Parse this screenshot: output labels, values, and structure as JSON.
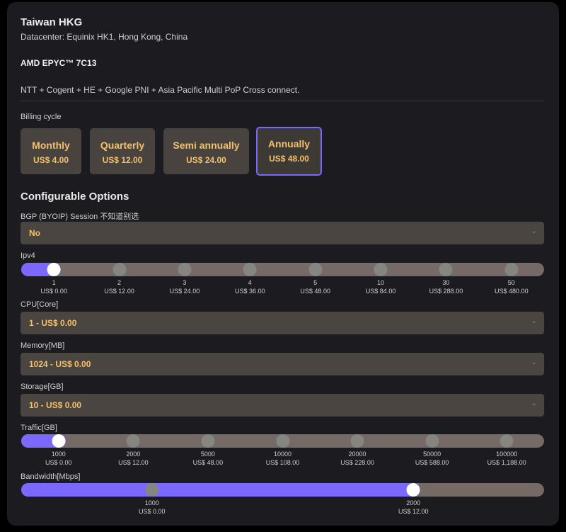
{
  "product": {
    "title": "Taiwan HKG",
    "datacenter": "Datacenter: Equinix HK1, Hong Kong, China",
    "cpu": "AMD EPYC™ 7C13",
    "network": "NTT + Cogent + HE + Google PNI + Asia Pacific Multi PoP Cross connect."
  },
  "billing": {
    "label": "Billing cycle",
    "selected": "Annually",
    "options": [
      {
        "name": "Monthly",
        "price": "US$ 4.00"
      },
      {
        "name": "Quarterly",
        "price": "US$ 12.00"
      },
      {
        "name": "Semi annually",
        "price": "US$ 24.00"
      },
      {
        "name": "Annually",
        "price": "US$ 48.00"
      }
    ]
  },
  "config": {
    "heading": "Configurable Options",
    "bgp": {
      "label": "BGP (BYOIP) Session 不知道别选",
      "value": "No"
    },
    "ipv4": {
      "label": "Ipv4",
      "selected_index": 0,
      "stops": [
        {
          "v": "1",
          "p": "US$ 0.00"
        },
        {
          "v": "2",
          "p": "US$ 12.00"
        },
        {
          "v": "3",
          "p": "US$ 24.00"
        },
        {
          "v": "4",
          "p": "US$ 36.00"
        },
        {
          "v": "5",
          "p": "US$ 48.00"
        },
        {
          "v": "10",
          "p": "US$ 84.00"
        },
        {
          "v": "30",
          "p": "US$ 288.00"
        },
        {
          "v": "50",
          "p": "US$ 480.00"
        }
      ]
    },
    "cpu": {
      "label": "CPU[Core]",
      "value": "1 - US$ 0.00"
    },
    "memory": {
      "label": "Memory[MB]",
      "value": "1024 - US$ 0.00"
    },
    "storage": {
      "label": "Storage[GB]",
      "value": "10 - US$ 0.00"
    },
    "traffic": {
      "label": "Traffic[GB]",
      "selected_index": 0,
      "stops": [
        {
          "v": "1000",
          "p": "US$ 0.00"
        },
        {
          "v": "2000",
          "p": "US$ 12.00"
        },
        {
          "v": "5000",
          "p": "US$ 48.00"
        },
        {
          "v": "10000",
          "p": "US$ 108.00"
        },
        {
          "v": "20000",
          "p": "US$ 228.00"
        },
        {
          "v": "50000",
          "p": "US$ 588.00"
        },
        {
          "v": "100000",
          "p": "US$ 1,188.00"
        }
      ]
    },
    "bandwidth": {
      "label": "Bandwidth[Mbps]",
      "selected_index": 1,
      "stops": [
        {
          "v": "1000",
          "p": "US$ 0.00"
        },
        {
          "v": "2000",
          "p": "US$ 12.00"
        }
      ]
    }
  },
  "colors": {
    "accent": "#7b68ff",
    "price": "#f4c069",
    "track": "#756a66"
  }
}
